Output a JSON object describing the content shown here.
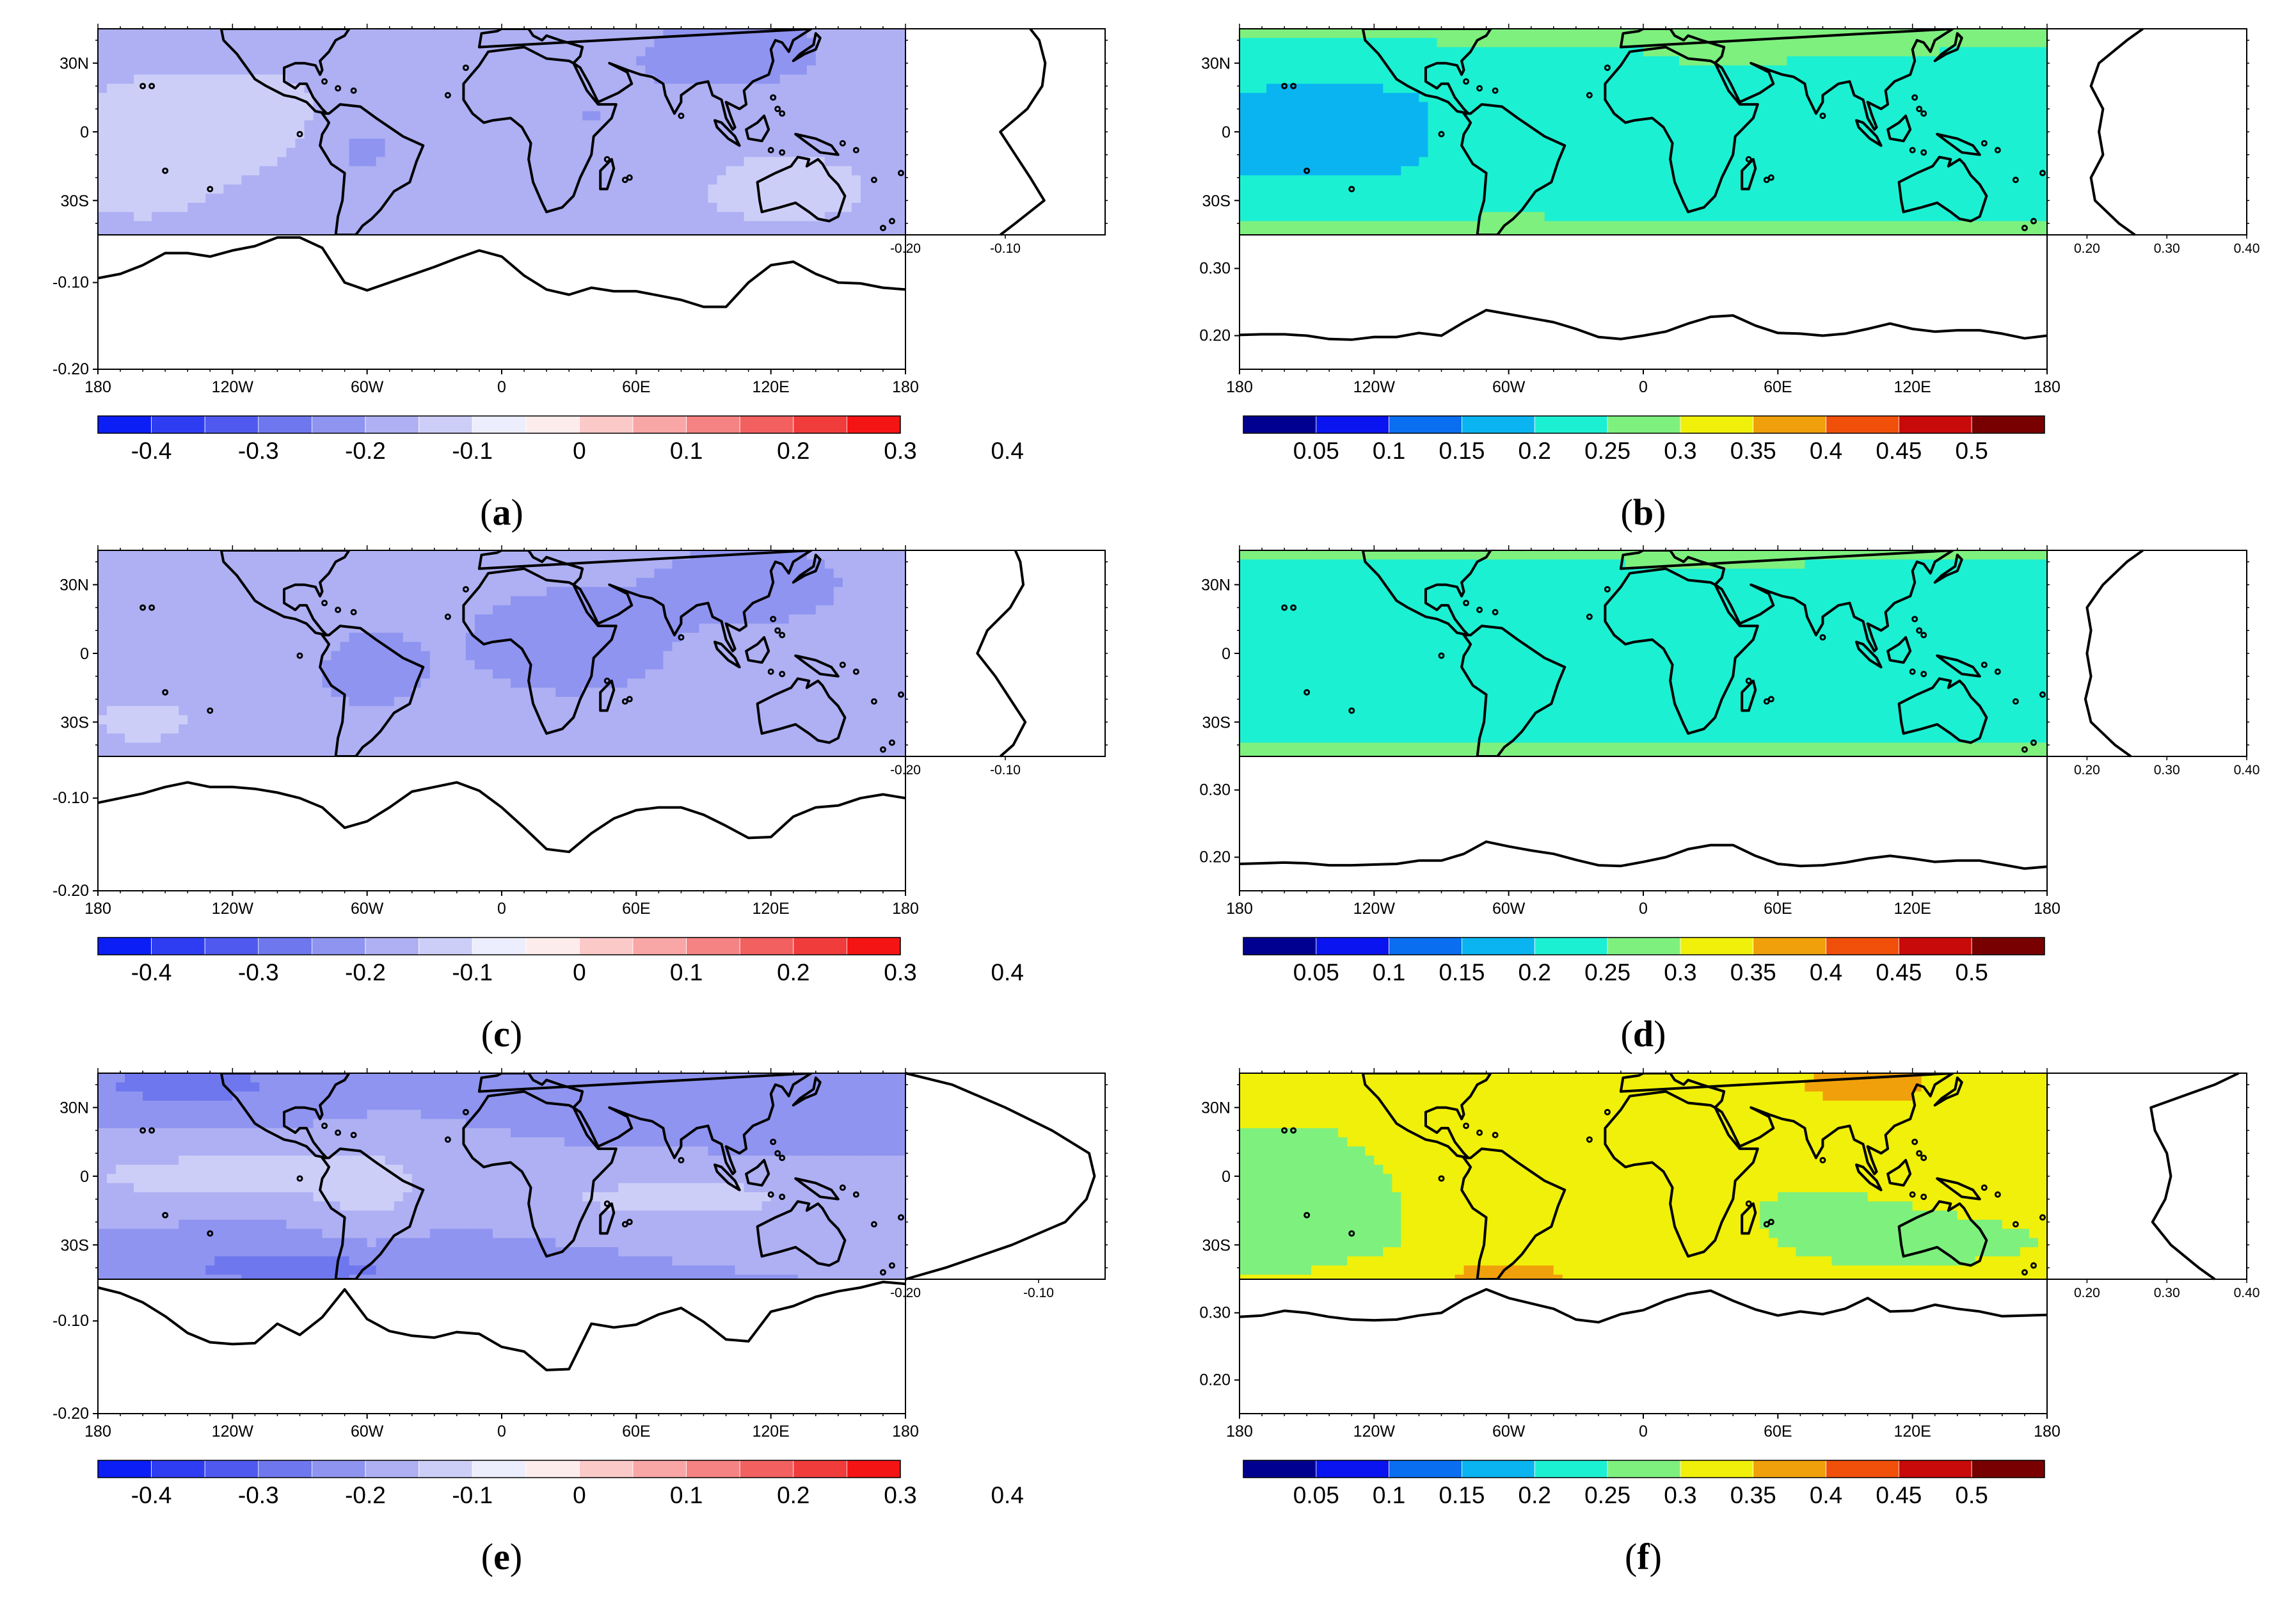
{
  "figure": {
    "panels": [
      {
        "id": "a",
        "caption_open": "(",
        "caption_letter": "a",
        "caption_close": ")"
      },
      {
        "id": "b",
        "caption_open": "(",
        "caption_letter": "b",
        "caption_close": ")"
      },
      {
        "id": "c",
        "caption_open": "(",
        "caption_letter": "c",
        "caption_close": ")"
      },
      {
        "id": "d",
        "caption_open": "(",
        "caption_letter": "d",
        "caption_close": ")"
      },
      {
        "id": "e",
        "caption_open": "(",
        "caption_letter": "e",
        "caption_close": ")"
      },
      {
        "id": "f",
        "caption_open": "(",
        "caption_letter": "f",
        "caption_close": ")"
      }
    ]
  },
  "colors": {
    "blue_red_palette": [
      "#0b1ef5",
      "#2e3df2",
      "#4f59ef",
      "#6f77ee",
      "#8f94f0",
      "#aeb0f3",
      "#cdcef8",
      "#ecedfd",
      "#fdecec",
      "#fcc9c9",
      "#f9a6a6",
      "#f58383",
      "#f26060",
      "#f13c3c",
      "#f51414"
    ],
    "rainbow_palette": [
      "#000090",
      "#0a14f0",
      "#0a6ef0",
      "#0ab4f0",
      "#1cf0d2",
      "#7ef07e",
      "#f0f00a",
      "#f0a00a",
      "#f0500a",
      "#c80a0a",
      "#780000"
    ]
  },
  "chart_data": [
    {
      "panel": "a",
      "type": "heatmap",
      "title": "",
      "map": {
        "lat_range": [
          -45,
          45
        ],
        "lon_range": [
          -180,
          180
        ],
        "lat_tick_labels": [
          "30N",
          "0",
          "30S"
        ],
        "lon_tick_labels": [
          "180",
          "120W",
          "60W",
          "0",
          "60E",
          "120E",
          "180"
        ],
        "levels": [
          -0.45,
          -0.4,
          -0.35,
          -0.3,
          -0.25,
          -0.2,
          -0.15,
          -0.1,
          -0.05,
          0,
          0.05,
          0.1,
          0.15,
          0.2,
          0.25,
          0.3,
          0.35,
          0.4,
          0.45
        ]
      },
      "zonal_mean": {
        "xlim": [
          -0.2,
          0
        ],
        "tick_labels": [
          "-0.20",
          "-0.10"
        ],
        "lat": [
          45,
          40,
          30,
          20,
          10,
          0,
          -10,
          -20,
          -30,
          -40,
          -45
        ],
        "value": [
          -0.075,
          -0.066,
          -0.06,
          -0.063,
          -0.078,
          -0.105,
          -0.09,
          -0.075,
          -0.061,
          -0.09,
          -0.105
        ]
      },
      "meridional_mean": {
        "ylim": [
          -0.2,
          -0.045
        ],
        "tick_labels": [
          "-0.10",
          "-0.20"
        ],
        "lon": [
          -180,
          -170,
          -160,
          -150,
          -140,
          -130,
          -120,
          -110,
          -100,
          -90,
          -80,
          -70,
          -60,
          -50,
          -40,
          -30,
          -20,
          -10,
          0,
          10,
          20,
          30,
          40,
          50,
          60,
          70,
          80,
          90,
          100,
          110,
          120,
          130,
          140,
          150,
          160,
          170,
          180
        ],
        "value": [
          -0.095,
          -0.09,
          -0.08,
          -0.066,
          -0.066,
          -0.07,
          -0.063,
          -0.058,
          -0.048,
          -0.048,
          -0.06,
          -0.1,
          -0.109,
          -0.1,
          -0.091,
          -0.082,
          -0.072,
          -0.063,
          -0.07,
          -0.092,
          -0.108,
          -0.114,
          -0.106,
          -0.11,
          -0.11,
          -0.115,
          -0.12,
          -0.128,
          -0.128,
          -0.1,
          -0.08,
          -0.076,
          -0.09,
          -0.1,
          -0.101,
          -0.106,
          -0.108
        ]
      },
      "colorbar": {
        "labels": [
          "-0.4",
          "-0.3",
          "-0.2",
          "-0.1",
          "0",
          "0.1",
          "0.2",
          "0.3",
          "0.4"
        ]
      }
    },
    {
      "panel": "b",
      "type": "heatmap",
      "title": "",
      "map": {
        "lat_range": [
          -45,
          45
        ],
        "lon_range": [
          -180,
          180
        ],
        "lat_tick_labels": [
          "30N",
          "0",
          "30S"
        ],
        "lon_tick_labels": [
          "180",
          "120W",
          "60W",
          "0",
          "60E",
          "120E",
          "180"
        ],
        "levels": [
          0.05,
          0.1,
          0.15,
          0.2,
          0.25,
          0.3,
          0.35,
          0.4,
          0.45,
          0.5
        ]
      },
      "zonal_mean": {
        "xlim": [
          0.15,
          0.4
        ],
        "tick_labels": [
          "0.20",
          "0.30",
          "0.40"
        ],
        "lat": [
          45,
          40,
          30,
          20,
          10,
          0,
          -10,
          -20,
          -30,
          -40,
          -45
        ],
        "value": [
          0.27,
          0.25,
          0.215,
          0.205,
          0.22,
          0.215,
          0.22,
          0.205,
          0.21,
          0.24,
          0.26
        ]
      },
      "meridional_mean": {
        "ylim": [
          0.15,
          0.35
        ],
        "tick_labels": [
          "0.30",
          "0.20"
        ],
        "lon": [
          -180,
          -170,
          -160,
          -150,
          -140,
          -130,
          -120,
          -110,
          -100,
          -90,
          -80,
          -70,
          -60,
          -50,
          -40,
          -30,
          -20,
          -10,
          0,
          10,
          20,
          30,
          40,
          50,
          60,
          70,
          80,
          90,
          100,
          110,
          120,
          130,
          140,
          150,
          160,
          170,
          180
        ],
        "value": [
          0.201,
          0.202,
          0.202,
          0.2,
          0.195,
          0.194,
          0.198,
          0.198,
          0.204,
          0.2,
          0.22,
          0.238,
          0.232,
          0.226,
          0.22,
          0.21,
          0.198,
          0.195,
          0.2,
          0.206,
          0.218,
          0.228,
          0.23,
          0.215,
          0.204,
          0.203,
          0.2,
          0.203,
          0.21,
          0.218,
          0.21,
          0.206,
          0.208,
          0.208,
          0.203,
          0.196,
          0.2
        ]
      },
      "colorbar": {
        "labels": [
          "0.05",
          "0.1",
          "0.15",
          "0.2",
          "0.25",
          "0.3",
          "0.35",
          "0.4",
          "0.45",
          "0.5"
        ]
      }
    },
    {
      "panel": "c",
      "type": "heatmap",
      "title": "",
      "map": {
        "lat_range": [
          -45,
          45
        ],
        "lon_range": [
          -180,
          180
        ],
        "lat_tick_labels": [
          "30N",
          "0",
          "30S"
        ],
        "lon_tick_labels": [
          "180",
          "120W",
          "60W",
          "0",
          "60E",
          "120E",
          "180"
        ],
        "levels": [
          -0.45,
          -0.4,
          -0.35,
          -0.3,
          -0.25,
          -0.2,
          -0.15,
          -0.1,
          -0.05,
          0,
          0.05,
          0.1,
          0.15,
          0.2,
          0.25,
          0.3,
          0.35,
          0.4,
          0.45
        ]
      },
      "zonal_mean": {
        "xlim": [
          -0.2,
          0
        ],
        "tick_labels": [
          "-0.20",
          "-0.10"
        ],
        "lat": [
          45,
          40,
          30,
          20,
          10,
          0,
          -10,
          -20,
          -30,
          -40,
          -45
        ],
        "value": [
          -0.09,
          -0.085,
          -0.082,
          -0.095,
          -0.118,
          -0.128,
          -0.11,
          -0.095,
          -0.08,
          -0.092,
          -0.105
        ]
      },
      "meridional_mean": {
        "ylim": [
          -0.2,
          -0.055
        ],
        "tick_labels": [
          "-0.10",
          "-0.20"
        ],
        "lon": [
          -180,
          -170,
          -160,
          -150,
          -140,
          -130,
          -120,
          -110,
          -100,
          -90,
          -80,
          -70,
          -60,
          -50,
          -40,
          -30,
          -20,
          -10,
          0,
          10,
          20,
          30,
          40,
          50,
          60,
          70,
          80,
          90,
          100,
          110,
          120,
          130,
          140,
          150,
          160,
          170,
          180
        ],
        "value": [
          -0.105,
          -0.1,
          -0.095,
          -0.088,
          -0.083,
          -0.088,
          -0.088,
          -0.09,
          -0.094,
          -0.1,
          -0.11,
          -0.132,
          -0.125,
          -0.11,
          -0.093,
          -0.088,
          -0.083,
          -0.092,
          -0.11,
          -0.132,
          -0.155,
          -0.158,
          -0.138,
          -0.122,
          -0.113,
          -0.11,
          -0.11,
          -0.118,
          -0.13,
          -0.143,
          -0.142,
          -0.12,
          -0.11,
          -0.108,
          -0.1,
          -0.096,
          -0.1
        ]
      },
      "colorbar": {
        "labels": [
          "-0.4",
          "-0.3",
          "-0.2",
          "-0.1",
          "0",
          "0.1",
          "0.2",
          "0.3",
          "0.4"
        ]
      }
    },
    {
      "panel": "d",
      "type": "heatmap",
      "title": "",
      "map": {
        "lat_range": [
          -45,
          45
        ],
        "lon_range": [
          -180,
          180
        ],
        "lat_tick_labels": [
          "30N",
          "0",
          "30S"
        ],
        "lon_tick_labels": [
          "180",
          "120W",
          "60W",
          "0",
          "60E",
          "120E",
          "180"
        ],
        "levels": [
          0.05,
          0.1,
          0.15,
          0.2,
          0.25,
          0.3,
          0.35,
          0.4,
          0.45,
          0.5
        ]
      },
      "zonal_mean": {
        "xlim": [
          0.15,
          0.4
        ],
        "tick_labels": [
          "0.20",
          "0.30",
          "0.40"
        ],
        "lat": [
          45,
          40,
          30,
          20,
          10,
          0,
          -10,
          -20,
          -30,
          -40,
          -45
        ],
        "value": [
          0.27,
          0.25,
          0.22,
          0.2,
          0.205,
          0.2,
          0.205,
          0.198,
          0.205,
          0.235,
          0.255
        ]
      },
      "meridional_mean": {
        "ylim": [
          0.15,
          0.35
        ],
        "tick_labels": [
          "0.30",
          "0.20"
        ],
        "lon": [
          -180,
          -170,
          -160,
          -150,
          -140,
          -130,
          -120,
          -110,
          -100,
          -90,
          -80,
          -70,
          -60,
          -50,
          -40,
          -30,
          -20,
          -10,
          0,
          10,
          20,
          30,
          40,
          50,
          60,
          70,
          80,
          90,
          100,
          110,
          120,
          130,
          140,
          150,
          160,
          170,
          180
        ],
        "value": [
          0.19,
          0.191,
          0.192,
          0.191,
          0.188,
          0.188,
          0.189,
          0.19,
          0.195,
          0.195,
          0.205,
          0.223,
          0.216,
          0.21,
          0.205,
          0.196,
          0.188,
          0.187,
          0.193,
          0.2,
          0.212,
          0.218,
          0.218,
          0.202,
          0.19,
          0.187,
          0.188,
          0.192,
          0.198,
          0.202,
          0.198,
          0.193,
          0.195,
          0.195,
          0.189,
          0.183,
          0.186
        ]
      },
      "colorbar": {
        "labels": [
          "0.05",
          "0.1",
          "0.15",
          "0.2",
          "0.25",
          "0.3",
          "0.35",
          "0.4",
          "0.45",
          "0.5"
        ]
      }
    },
    {
      "panel": "e",
      "type": "heatmap",
      "title": "",
      "map": {
        "lat_range": [
          -45,
          45
        ],
        "lon_range": [
          -180,
          180
        ],
        "lat_tick_labels": [
          "30N",
          "0",
          "30S"
        ],
        "lon_tick_labels": [
          "180",
          "120W",
          "60W",
          "0",
          "60E",
          "120E",
          "180"
        ],
        "levels": [
          -0.45,
          -0.4,
          -0.35,
          -0.3,
          -0.25,
          -0.2,
          -0.15,
          -0.1,
          -0.05,
          0,
          0.05,
          0.1,
          0.15,
          0.2,
          0.25,
          0.3,
          0.35,
          0.4,
          0.45
        ]
      },
      "zonal_mean": {
        "xlim": [
          -0.2,
          -0.05
        ],
        "tick_labels": [
          "-0.20",
          "-0.10"
        ],
        "lat": [
          45,
          40,
          30,
          20,
          10,
          0,
          -10,
          -20,
          -30,
          -40,
          -45
        ],
        "value": [
          -0.2,
          -0.165,
          -0.125,
          -0.09,
          -0.062,
          -0.058,
          -0.064,
          -0.08,
          -0.12,
          -0.17,
          -0.2
        ]
      },
      "meridional_mean": {
        "ylim": [
          -0.2,
          -0.055
        ],
        "tick_labels": [
          "-0.10",
          "-0.20"
        ],
        "lon": [
          -180,
          -170,
          -160,
          -150,
          -140,
          -130,
          -120,
          -110,
          -100,
          -90,
          -80,
          -70,
          -60,
          -50,
          -40,
          -30,
          -20,
          -10,
          0,
          10,
          20,
          30,
          40,
          50,
          60,
          70,
          80,
          90,
          100,
          110,
          120,
          130,
          140,
          150,
          160,
          170,
          180
        ],
        "value": [
          -0.064,
          -0.07,
          -0.08,
          -0.095,
          -0.113,
          -0.123,
          -0.125,
          -0.124,
          -0.103,
          -0.115,
          -0.096,
          -0.066,
          -0.098,
          -0.111,
          -0.116,
          -0.118,
          -0.112,
          -0.114,
          -0.128,
          -0.133,
          -0.153,
          -0.152,
          -0.103,
          -0.107,
          -0.104,
          -0.093,
          -0.086,
          -0.101,
          -0.12,
          -0.122,
          -0.09,
          -0.084,
          -0.074,
          -0.068,
          -0.064,
          -0.058,
          -0.06
        ]
      },
      "colorbar": {
        "labels": [
          "-0.4",
          "-0.3",
          "-0.2",
          "-0.1",
          "0",
          "0.1",
          "0.2",
          "0.3",
          "0.4"
        ]
      }
    },
    {
      "panel": "f",
      "type": "heatmap",
      "title": "",
      "map": {
        "lat_range": [
          -45,
          45
        ],
        "lon_range": [
          -180,
          180
        ],
        "lat_tick_labels": [
          "30N",
          "0",
          "30S"
        ],
        "lon_tick_labels": [
          "180",
          "120W",
          "60W",
          "0",
          "60E",
          "120E",
          "180"
        ],
        "levels": [
          0.05,
          0.1,
          0.15,
          0.2,
          0.25,
          0.3,
          0.35,
          0.4,
          0.45,
          0.5
        ]
      },
      "zonal_mean": {
        "xlim": [
          0.15,
          0.4
        ],
        "tick_labels": [
          "0.20",
          "0.30",
          "0.40"
        ],
        "lat": [
          45,
          40,
          30,
          20,
          10,
          0,
          -10,
          -20,
          -30,
          -40,
          -45
        ],
        "value": [
          0.39,
          0.36,
          0.28,
          0.285,
          0.3,
          0.305,
          0.298,
          0.282,
          0.305,
          0.34,
          0.36
        ]
      },
      "meridional_mean": {
        "ylim": [
          0.15,
          0.35
        ],
        "tick_labels": [
          "0.30",
          "0.20"
        ],
        "lon": [
          -180,
          -170,
          -160,
          -150,
          -140,
          -130,
          -120,
          -110,
          -100,
          -90,
          -80,
          -70,
          -60,
          -50,
          -40,
          -30,
          -20,
          -10,
          0,
          10,
          20,
          30,
          40,
          50,
          60,
          70,
          80,
          90,
          100,
          110,
          120,
          130,
          140,
          150,
          160,
          170,
          180
        ],
        "value": [
          0.294,
          0.296,
          0.303,
          0.3,
          0.294,
          0.29,
          0.289,
          0.29,
          0.296,
          0.3,
          0.32,
          0.335,
          0.322,
          0.314,
          0.306,
          0.29,
          0.286,
          0.298,
          0.304,
          0.318,
          0.328,
          0.333,
          0.318,
          0.305,
          0.296,
          0.302,
          0.298,
          0.306,
          0.322,
          0.302,
          0.303,
          0.312,
          0.306,
          0.302,
          0.295,
          0.296,
          0.297
        ]
      },
      "colorbar": {
        "labels": [
          "0.05",
          "0.1",
          "0.15",
          "0.2",
          "0.25",
          "0.3",
          "0.35",
          "0.4",
          "0.45",
          "0.5"
        ]
      }
    }
  ]
}
